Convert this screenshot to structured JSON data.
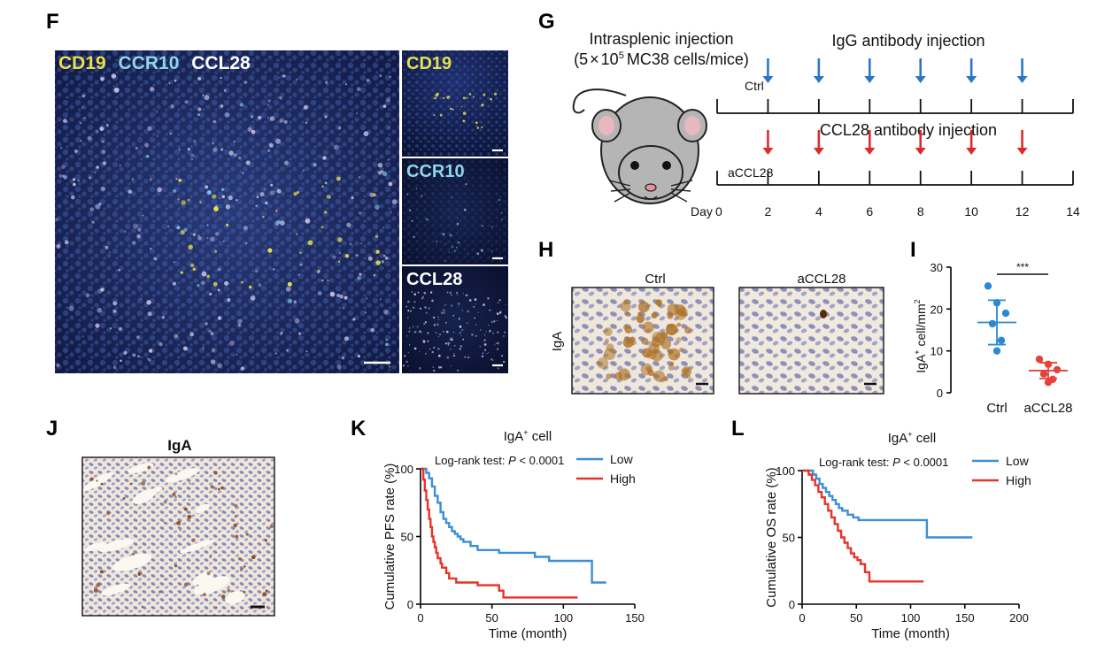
{
  "panels": {
    "F": {
      "letter": "F",
      "main_labels": [
        {
          "text": "CD19",
          "color": "#e8e04a"
        },
        {
          "text": "CCR10",
          "color": "#8fd6e8"
        },
        {
          "text": "CCL28",
          "color": "#ffffff"
        }
      ],
      "insets": [
        {
          "text": "CD19",
          "color": "#e8e04a"
        },
        {
          "text": "CCR10",
          "color": "#8fd6e8"
        },
        {
          "text": "CCL28",
          "color": "#ffffff"
        }
      ]
    },
    "G": {
      "letter": "G",
      "injection_title": "Intrasplenic injection",
      "injection_dose_prefix": "(5",
      "injection_dose_times": "×",
      "injection_dose_base": "10",
      "injection_dose_exp": "5",
      "injection_dose_suffix": "MC38 cells/mice)",
      "top_label": "IgG antibody injection",
      "bottom_label": "CCL28 antibody injection",
      "ctrl_label": "Ctrl",
      "treat_label": "aCCL28",
      "day_label": "Day",
      "days": [
        "0",
        "2",
        "4",
        "6",
        "8",
        "10",
        "12",
        "14"
      ],
      "arrow_days": [
        2,
        4,
        6,
        8,
        10,
        12
      ],
      "arrow_color_top": "#2b77c4",
      "arrow_color_bottom": "#e02a2a"
    },
    "H": {
      "letter": "H",
      "ylabel": "IgA",
      "left_title": "Ctrl",
      "right_title": "aCCL28"
    },
    "I": {
      "letter": "I",
      "ylabel_main": "IgA",
      "ylabel_sup": "+",
      "ylabel_rest": " cell/mm",
      "ylabel_sup2": "2",
      "yticks": [
        "0",
        "10",
        "20",
        "30"
      ],
      "categories": [
        "Ctrl",
        "aCCL28"
      ],
      "significance": "***",
      "ctrl_color": "#2b89d4",
      "treat_color": "#e8403a"
    },
    "J": {
      "letter": "J",
      "title": "IgA"
    },
    "K": {
      "letter": "K",
      "title_main": "IgA",
      "title_sup": "+",
      "title_rest": " cell",
      "logrank_prefix": "Log-rank test: ",
      "logrank_p": "P",
      "logrank_suffix": " < 0.0001",
      "legend": [
        {
          "name": "Low",
          "color": "#3a8fd6"
        },
        {
          "name": "High",
          "color": "#e8322a"
        }
      ],
      "ylabel": "Cumulative PFS rate (%)",
      "xlabel": "Time (month)",
      "xticks": [
        "0",
        "50",
        "100",
        "150"
      ],
      "yticks": [
        "0",
        "50",
        "100"
      ]
    },
    "L": {
      "letter": "L",
      "title_main": "IgA",
      "title_sup": "+",
      "title_rest": " cell",
      "logrank_prefix": "Log-rank test: ",
      "logrank_p": "P",
      "logrank_suffix": " < 0.0001",
      "legend": [
        {
          "name": "Low",
          "color": "#3a8fd6"
        },
        {
          "name": "High",
          "color": "#e8322a"
        }
      ],
      "ylabel": "Cumulative OS rate (%)",
      "xlabel": "Time (month)",
      "xticks": [
        "0",
        "50",
        "100",
        "150",
        "200"
      ],
      "yticks": [
        "0",
        "50",
        "100"
      ]
    }
  },
  "chart_data": [
    {
      "panel": "I",
      "type": "scatter",
      "categories": [
        "Ctrl",
        "aCCL28"
      ],
      "ylim": [
        0,
        30
      ],
      "series": [
        {
          "name": "Ctrl",
          "values": [
            25.5,
            21.5,
            19,
            16.5,
            12.5,
            10
          ],
          "mean": 16.8,
          "sd": 5.3
        },
        {
          "name": "aCCL28",
          "values": [
            8,
            6.8,
            5.5,
            4.5,
            3.2,
            2.5
          ],
          "mean": 5.3,
          "sd": 1.9
        }
      ]
    },
    {
      "panel": "K",
      "type": "line",
      "xlim": [
        0,
        150
      ],
      "ylim": [
        0,
        100
      ],
      "series": [
        {
          "name": "Low",
          "x": [
            0,
            4,
            6,
            8,
            10,
            12,
            14,
            16,
            18,
            20,
            22,
            24,
            26,
            28,
            30,
            35,
            40,
            55,
            80,
            90,
            120,
            130
          ],
          "y": [
            100,
            97,
            93,
            87,
            80,
            75,
            68,
            63,
            60,
            57,
            54,
            52,
            50,
            48,
            46,
            43,
            40,
            38,
            35,
            32,
            16,
            16
          ]
        },
        {
          "name": "High",
          "x": [
            0,
            2,
            3,
            4,
            5,
            6,
            7,
            8,
            9,
            10,
            11,
            12,
            14,
            15,
            18,
            20,
            25,
            40,
            55,
            58,
            110
          ],
          "y": [
            100,
            92,
            84,
            77,
            70,
            63,
            57,
            50,
            46,
            42,
            38,
            34,
            30,
            27,
            23,
            19,
            16,
            14,
            10,
            5,
            5
          ]
        }
      ]
    },
    {
      "panel": "L",
      "type": "line",
      "xlim": [
        0,
        200
      ],
      "ylim": [
        0,
        100
      ],
      "series": [
        {
          "name": "Low",
          "x": [
            0,
            10,
            13,
            16,
            19,
            22,
            25,
            28,
            31,
            34,
            37,
            42,
            47,
            52,
            115,
            157
          ],
          "y": [
            100,
            97,
            94,
            90,
            87,
            84,
            81,
            78,
            75,
            72,
            70,
            67,
            65,
            63,
            50,
            50
          ]
        },
        {
          "name": "High",
          "x": [
            0,
            6,
            9,
            12,
            15,
            18,
            21,
            24,
            27,
            30,
            33,
            36,
            39,
            42,
            45,
            48,
            51,
            54,
            58,
            62,
            112
          ],
          "y": [
            100,
            97,
            93,
            89,
            84,
            80,
            75,
            70,
            65,
            60,
            55,
            50,
            46,
            42,
            38,
            35,
            33,
            30,
            24,
            17,
            17
          ]
        }
      ]
    }
  ]
}
